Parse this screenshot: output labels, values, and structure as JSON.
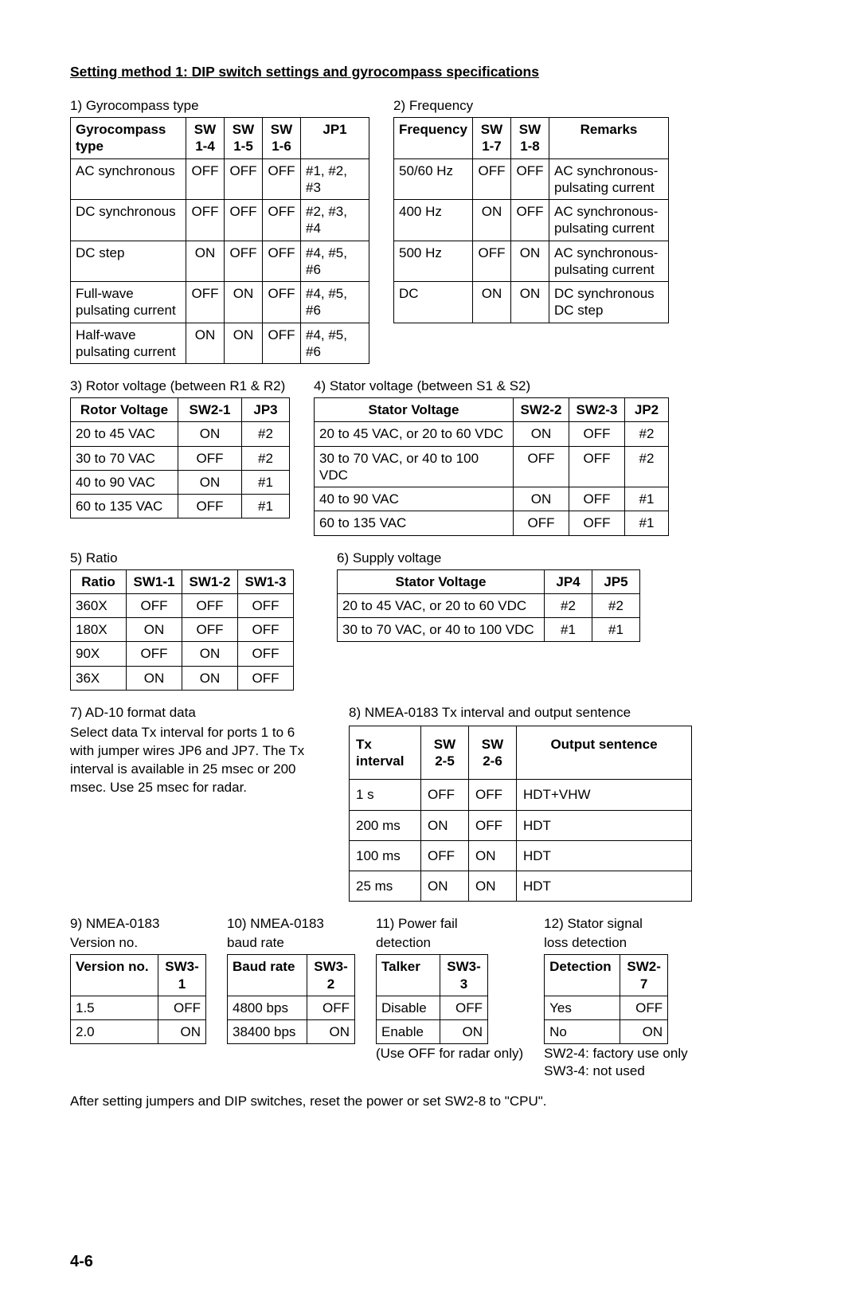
{
  "title": "Setting method 1: DIP switch settings and gyrocompass specifications",
  "colors": {
    "text": "#000000",
    "border": "#000000",
    "bg": "#ffffff"
  },
  "table1": {
    "caption": "1) Gyrocompass type",
    "headers": [
      "Gyrocompass type",
      "SW 1-4",
      "SW 1-5",
      "SW 1-6",
      "JP1"
    ],
    "rows": [
      [
        "AC synchronous",
        "OFF",
        "OFF",
        "OFF",
        "#1, #2, #3"
      ],
      [
        "DC synchronous",
        "OFF",
        "OFF",
        "OFF",
        "#2, #3, #4"
      ],
      [
        "DC step",
        "ON",
        "OFF",
        "OFF",
        "#4, #5, #6"
      ],
      [
        "Full-wave pulsating current",
        "OFF",
        "ON",
        "OFF",
        "#4, #5, #6"
      ],
      [
        "Half-wave pulsating current",
        "ON",
        "ON",
        "OFF",
        "#4, #5, #6"
      ]
    ],
    "widths": [
      145,
      48,
      48,
      48,
      86
    ]
  },
  "table2": {
    "caption": "2) Frequency",
    "headers": [
      "Frequency",
      "SW 1-7",
      "SW 1-8",
      "Remarks"
    ],
    "rows": [
      [
        "50/60 Hz",
        "OFF",
        "OFF",
        "AC synchronous-pulsating current"
      ],
      [
        "400 Hz",
        "ON",
        "OFF",
        "AC synchronous-pulsating current"
      ],
      [
        "500 Hz",
        "OFF",
        "ON",
        "AC synchronous-pulsating current"
      ],
      [
        "DC",
        "ON",
        "ON",
        "DC synchronous DC step"
      ]
    ],
    "widths": [
      98,
      48,
      48,
      150
    ]
  },
  "table3": {
    "caption": "3) Rotor voltage (between R1 & R2)",
    "headers": [
      "Rotor Voltage",
      "SW2-1",
      "JP3"
    ],
    "rows": [
      [
        "20 to 45 VAC",
        "ON",
        "#2"
      ],
      [
        "30 to 70 VAC",
        "OFF",
        "#2"
      ],
      [
        "40 to 90 VAC",
        "ON",
        "#1"
      ],
      [
        "60 to 135 VAC",
        "OFF",
        "#1"
      ]
    ],
    "widths": [
      135,
      80,
      60
    ]
  },
  "table4": {
    "caption": "4) Stator voltage (between S1 & S2)",
    "headers": [
      "Stator Voltage",
      "SW2-2",
      "SW2-3",
      "JP2"
    ],
    "rows": [
      [
        "20 to 45 VAC, or 20 to 60 VDC",
        "ON",
        "OFF",
        "#2"
      ],
      [
        "30 to 70 VAC, or 40 to 100 VDC",
        "OFF",
        "OFF",
        "#2"
      ],
      [
        "40 to 90 VAC",
        "ON",
        "OFF",
        "#1"
      ],
      [
        "60 to 135 VAC",
        "OFF",
        "OFF",
        "#1"
      ]
    ],
    "widths": [
      250,
      70,
      70,
      55
    ]
  },
  "table5": {
    "caption": "5) Ratio",
    "headers": [
      "Ratio",
      "SW1-1",
      "SW1-2",
      "SW1-3"
    ],
    "rows": [
      [
        "360X",
        "OFF",
        "OFF",
        "OFF"
      ],
      [
        "180X",
        "ON",
        "OFF",
        "OFF"
      ],
      [
        "90X",
        "OFF",
        "ON",
        "OFF"
      ],
      [
        "36X",
        "ON",
        "ON",
        "OFF"
      ]
    ],
    "widths": [
      70,
      70,
      70,
      70
    ]
  },
  "table6": {
    "caption": "6) Supply voltage",
    "headers": [
      "Stator Voltage",
      "JP4",
      "JP5"
    ],
    "rows": [
      [
        "20 to 45 VAC, or 20 to 60 VDC",
        "#2",
        "#2"
      ],
      [
        "30 to 70 VAC, or 40 to 100 VDC",
        "#1",
        "#1"
      ]
    ],
    "widths": [
      260,
      60,
      60
    ]
  },
  "section7": {
    "caption": "7) AD-10 format data",
    "text": "Select data Tx interval for ports 1 to 6 with jumper wires JP6 and JP7. The Tx interval is available in 25 msec or 200 msec. Use 25 msec for radar."
  },
  "table8": {
    "caption": "8) NMEA-0183 Tx interval and output sentence",
    "headers": [
      "Tx interval",
      "SW 2-5",
      "SW 2-6",
      "Output sentence"
    ],
    "rows": [
      [
        "1 s",
        "OFF",
        "OFF",
        "HDT+VHW"
      ],
      [
        "200 ms",
        "ON",
        "OFF",
        "HDT"
      ],
      [
        "100 ms",
        "OFF",
        "ON",
        "HDT"
      ],
      [
        "25 ms",
        "ON",
        "ON",
        "HDT"
      ]
    ],
    "widths": [
      90,
      60,
      60,
      220
    ]
  },
  "table9": {
    "caption1": "9) NMEA-0183",
    "caption2": "Version no.",
    "headers": [
      "Version no.",
      "SW3-1"
    ],
    "rows": [
      [
        "1.5",
        "OFF"
      ],
      [
        "2.0",
        "ON"
      ]
    ],
    "widths": [
      110,
      60
    ]
  },
  "table10": {
    "caption1": "10) NMEA-0183",
    "caption2": "baud rate",
    "headers": [
      "Baud rate",
      "SW3-2"
    ],
    "rows": [
      [
        "4800 bps",
        "OFF"
      ],
      [
        "38400 bps",
        "ON"
      ]
    ],
    "widths": [
      100,
      60
    ]
  },
  "table11": {
    "caption1": "11) Power fail",
    "caption2": "detection",
    "headers": [
      "Talker",
      "SW3-3"
    ],
    "rows": [
      [
        "Disable",
        "OFF"
      ],
      [
        "Enable",
        "ON"
      ]
    ],
    "note": "(Use OFF for radar only)",
    "widths": [
      80,
      60
    ]
  },
  "table12": {
    "caption1": "12) Stator signal",
    "caption2": "loss detection",
    "headers": [
      "Detection",
      "SW2-7"
    ],
    "rows": [
      [
        "Yes",
        "OFF"
      ],
      [
        "No",
        "ON"
      ]
    ],
    "note1": "SW2-4: factory use only",
    "note2": "SW3-4: not used",
    "widths": [
      95,
      60
    ]
  },
  "closing": "After setting jumpers and DIP switches, reset the power or set SW2-8 to \"CPU\".",
  "page_number": "4-6"
}
